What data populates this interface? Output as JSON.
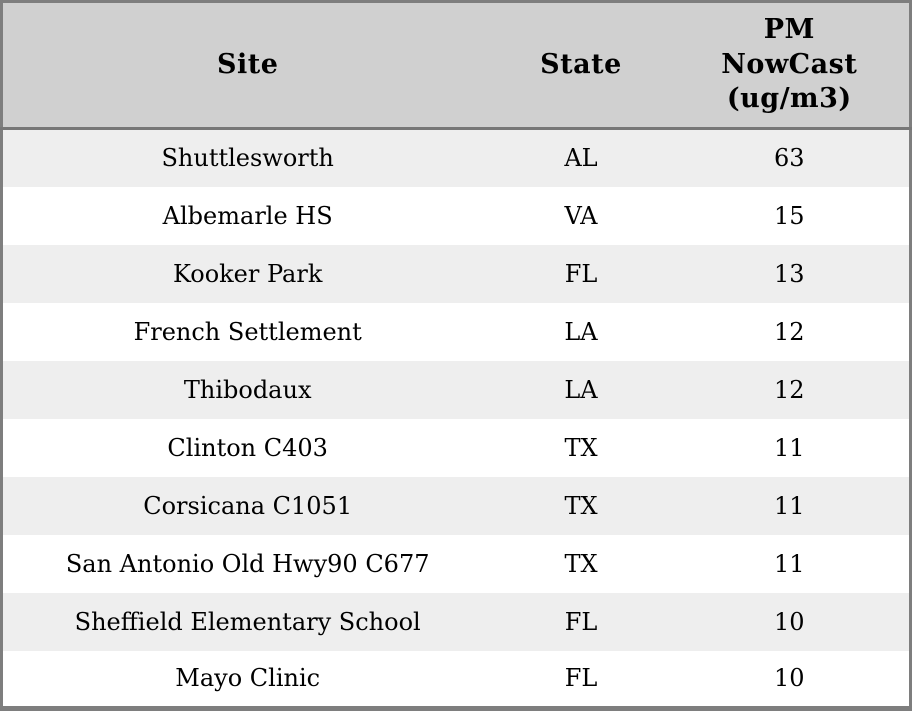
{
  "chart_data": {
    "type": "table",
    "title": "",
    "columns": [
      {
        "id": "site",
        "label": "Site",
        "display": "Site"
      },
      {
        "id": "state",
        "label": "State",
        "display": "State"
      },
      {
        "id": "pm_nowcast",
        "label": "PM NowCast (ug/m3)",
        "display": "PM\nNowCast\n(ug/m3)"
      }
    ],
    "rows": [
      {
        "site": "Shuttlesworth",
        "state": "AL",
        "pm_nowcast": "63"
      },
      {
        "site": "Albemarle HS",
        "state": "VA",
        "pm_nowcast": "15"
      },
      {
        "site": "Kooker Park",
        "state": "FL",
        "pm_nowcast": "13"
      },
      {
        "site": "French Settlement",
        "state": "LA",
        "pm_nowcast": "12"
      },
      {
        "site": "Thibodaux",
        "state": "LA",
        "pm_nowcast": "12"
      },
      {
        "site": "Clinton C403",
        "state": "TX",
        "pm_nowcast": "11"
      },
      {
        "site": "Corsicana C1051",
        "state": "TX",
        "pm_nowcast": "11"
      },
      {
        "site": "San Antonio Old Hwy90 C677",
        "state": "TX",
        "pm_nowcast": "11"
      },
      {
        "site": "Sheffield Elementary School",
        "state": "FL",
        "pm_nowcast": "10"
      },
      {
        "site": "Mayo Clinic",
        "state": "FL",
        "pm_nowcast": "10"
      }
    ],
    "layout": {
      "striped": true,
      "grid": false,
      "header_position": "top"
    }
  },
  "colors": {
    "header_bg": "#d0d0d0",
    "row_odd_bg": "#eeeeee",
    "row_even_bg": "#ffffff",
    "border": "#7e7e7e",
    "header_rule": "#777777",
    "text": "#000000"
  }
}
